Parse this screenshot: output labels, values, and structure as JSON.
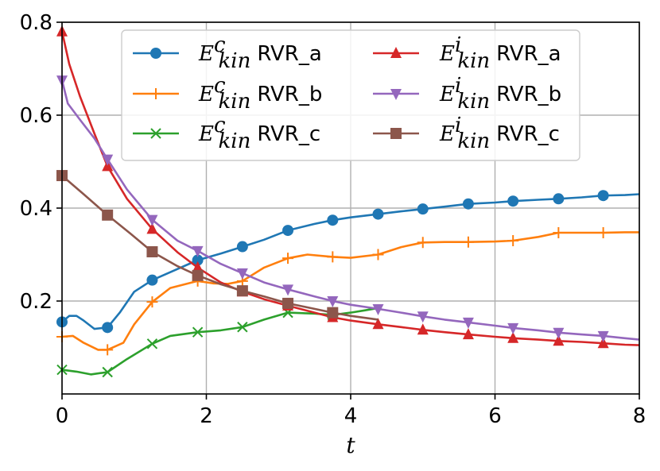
{
  "chart_data": {
    "type": "line",
    "title": "",
    "xlabel": "t",
    "ylabel": "",
    "xlim": [
      0,
      8
    ],
    "ylim": [
      0.0,
      0.8
    ],
    "xticks": [
      0,
      2,
      4,
      6,
      8
    ],
    "xtick_labels": [
      "0",
      "2",
      "4",
      "6",
      "8"
    ],
    "yticks": [
      0.2,
      0.4,
      0.6,
      0.8
    ],
    "ytick_labels": [
      "0.2",
      "0.4",
      "0.6",
      "0.8"
    ],
    "grid": true,
    "legend_position": "top-center",
    "series": [
      {
        "name": "E_kin^c RVR_a",
        "symbol": "E",
        "sup": "c",
        "sub": "kin",
        "label": "RVR_a",
        "color": "#1f77b4",
        "marker": "circle",
        "x": [
          0,
          0.1,
          0.2,
          0.3,
          0.45,
          0.63,
          0.8,
          1.0,
          1.25,
          1.5,
          1.88,
          2.2,
          2.5,
          2.8,
          3.13,
          3.5,
          3.75,
          4.0,
          4.38,
          4.7,
          5.0,
          5.3,
          5.63,
          6.0,
          6.25,
          6.6,
          6.88,
          7.2,
          7.5,
          7.8,
          8.0
        ],
        "y": [
          0.155,
          0.168,
          0.168,
          0.158,
          0.14,
          0.143,
          0.175,
          0.22,
          0.245,
          0.262,
          0.288,
          0.302,
          0.317,
          0.332,
          0.352,
          0.366,
          0.374,
          0.38,
          0.387,
          0.393,
          0.398,
          0.403,
          0.409,
          0.412,
          0.415,
          0.418,
          0.42,
          0.423,
          0.427,
          0.428,
          0.43
        ],
        "marker_x": [
          0,
          0.63,
          1.25,
          1.88,
          2.5,
          3.13,
          3.75,
          4.38,
          5.0,
          5.63,
          6.25,
          6.88,
          7.5
        ]
      },
      {
        "name": "E_kin^c RVR_b",
        "symbol": "E",
        "sup": "c",
        "sub": "kin",
        "label": "RVR_b",
        "color": "#ff7f0e",
        "marker": "plus",
        "x": [
          0,
          0.15,
          0.3,
          0.5,
          0.63,
          0.85,
          1.0,
          1.25,
          1.5,
          1.88,
          2.1,
          2.3,
          2.5,
          2.8,
          3.13,
          3.4,
          3.75,
          4.0,
          4.38,
          4.7,
          5.0,
          5.3,
          5.63,
          6.0,
          6.25,
          6.6,
          6.88,
          7.2,
          7.5,
          7.8,
          8.0
        ],
        "y": [
          0.123,
          0.125,
          0.11,
          0.095,
          0.095,
          0.11,
          0.15,
          0.198,
          0.228,
          0.243,
          0.238,
          0.237,
          0.243,
          0.272,
          0.292,
          0.3,
          0.295,
          0.293,
          0.3,
          0.316,
          0.326,
          0.327,
          0.327,
          0.328,
          0.33,
          0.338,
          0.347,
          0.347,
          0.347,
          0.348,
          0.348
        ],
        "marker_x": [
          0,
          0.63,
          1.25,
          1.88,
          2.5,
          3.13,
          3.75,
          4.38,
          5.0,
          5.63,
          6.25,
          6.88,
          7.5
        ]
      },
      {
        "name": "E_kin^c RVR_c",
        "symbol": "E",
        "sup": "c",
        "sub": "kin",
        "label": "RVR_c",
        "color": "#2ca02c",
        "marker": "x",
        "x": [
          0,
          0.2,
          0.4,
          0.63,
          0.9,
          1.25,
          1.5,
          1.88,
          2.2,
          2.5,
          2.8,
          3.13,
          3.5,
          3.75,
          4.0,
          4.2,
          4.38
        ],
        "y": [
          0.052,
          0.048,
          0.042,
          0.047,
          0.075,
          0.108,
          0.125,
          0.133,
          0.137,
          0.144,
          0.16,
          0.175,
          0.173,
          0.17,
          0.175,
          0.18,
          0.185
        ],
        "marker_x": [
          0,
          0.63,
          1.25,
          1.88,
          2.5,
          3.13,
          3.75
        ]
      },
      {
        "name": "E_kin^i RVR_a",
        "symbol": "E",
        "sup": "i",
        "sub": "kin",
        "label": "RVR_a",
        "color": "#d62728",
        "marker": "triangle-up",
        "x": [
          0,
          0.1,
          0.25,
          0.45,
          0.63,
          0.9,
          1.25,
          1.6,
          1.88,
          2.2,
          2.5,
          2.8,
          3.13,
          3.5,
          3.75,
          4.0,
          4.38,
          4.7,
          5.0,
          5.3,
          5.63,
          6.0,
          6.25,
          6.6,
          6.88,
          7.2,
          7.5,
          7.8,
          8.0
        ],
        "y": [
          0.78,
          0.71,
          0.64,
          0.56,
          0.49,
          0.42,
          0.355,
          0.305,
          0.272,
          0.24,
          0.22,
          0.204,
          0.19,
          0.175,
          0.165,
          0.158,
          0.15,
          0.144,
          0.138,
          0.133,
          0.128,
          0.123,
          0.12,
          0.117,
          0.114,
          0.112,
          0.109,
          0.106,
          0.105
        ],
        "marker_x": [
          0,
          0.63,
          1.25,
          1.88,
          2.5,
          3.13,
          3.75,
          4.38,
          5.0,
          5.63,
          6.25,
          6.88,
          7.5
        ]
      },
      {
        "name": "E_kin^i RVR_b",
        "symbol": "E",
        "sup": "i",
        "sub": "kin",
        "label": "RVR_b",
        "color": "#9467bd",
        "marker": "triangle-down",
        "x": [
          0,
          0.08,
          0.25,
          0.45,
          0.63,
          0.9,
          1.25,
          1.6,
          1.88,
          2.2,
          2.5,
          2.8,
          3.13,
          3.5,
          3.75,
          4.0,
          4.38,
          4.7,
          5.0,
          5.3,
          5.63,
          6.0,
          6.25,
          6.6,
          6.88,
          7.2,
          7.5,
          7.8,
          8.0
        ],
        "y": [
          0.675,
          0.625,
          0.59,
          0.55,
          0.505,
          0.44,
          0.375,
          0.33,
          0.308,
          0.28,
          0.26,
          0.24,
          0.225,
          0.21,
          0.2,
          0.192,
          0.183,
          0.175,
          0.167,
          0.16,
          0.154,
          0.147,
          0.142,
          0.137,
          0.132,
          0.128,
          0.125,
          0.12,
          0.117
        ],
        "marker_x": [
          0,
          0.63,
          1.25,
          1.88,
          2.5,
          3.13,
          3.75,
          4.38,
          5.0,
          5.63,
          6.25,
          6.88,
          7.5
        ]
      },
      {
        "name": "E_kin^i RVR_c",
        "symbol": "E",
        "sup": "i",
        "sub": "kin",
        "label": "RVR_c",
        "color": "#8c564b",
        "marker": "square",
        "x": [
          0,
          0.3,
          0.63,
          0.95,
          1.25,
          1.6,
          1.88,
          2.2,
          2.5,
          2.8,
          3.13,
          3.5,
          3.75,
          4.0,
          4.38
        ],
        "y": [
          0.47,
          0.43,
          0.385,
          0.345,
          0.306,
          0.275,
          0.255,
          0.236,
          0.222,
          0.21,
          0.195,
          0.183,
          0.175,
          0.168,
          0.16
        ],
        "marker_x": [
          0,
          0.63,
          1.25,
          1.88,
          2.5,
          3.13,
          3.75
        ]
      }
    ]
  }
}
